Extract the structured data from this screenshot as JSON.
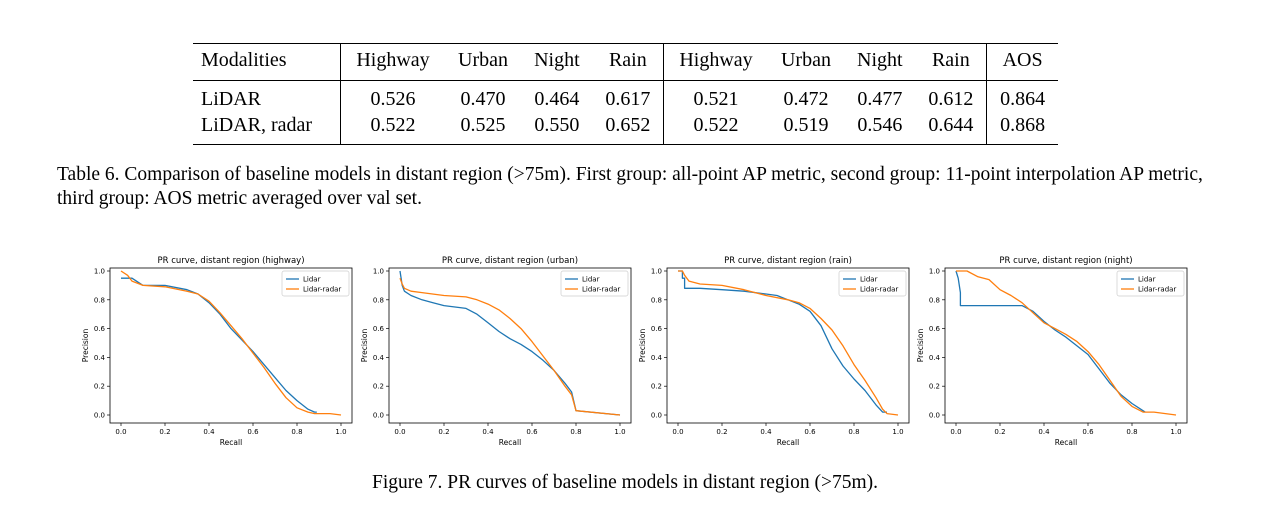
{
  "table": {
    "headers": [
      "Modalities",
      "Highway",
      "Urban",
      "Night",
      "Rain",
      "Highway",
      "Urban",
      "Night",
      "Rain",
      "AOS"
    ],
    "rows": [
      [
        "LiDAR",
        "0.526",
        "0.470",
        "0.464",
        "0.617",
        "0.521",
        "0.472",
        "0.477",
        "0.612",
        "0.864"
      ],
      [
        "LiDAR, radar",
        "0.522",
        "0.525",
        "0.550",
        "0.652",
        "0.522",
        "0.519",
        "0.546",
        "0.644",
        "0.868"
      ]
    ],
    "caption": "Table 6. Comparison of baseline models in distant region (>75m). First group: all-point AP metric, second group: 11-point interpolation AP metric, third group: AOS metric averaged over val set."
  },
  "figure_caption": "Figure 7. PR curves of baseline models in distant region (>75m).",
  "colors": {
    "lidar": "#1f77b4",
    "lidar_radar": "#ff7f0e"
  },
  "chart_data": [
    {
      "type": "line",
      "title": "PR curve, distant region (highway)",
      "xlabel": "Recall",
      "ylabel": "Precision",
      "xlim": [
        0,
        1.0
      ],
      "ylim": [
        0,
        1.0
      ],
      "xticks": [
        "0.0",
        "0.2",
        "0.4",
        "0.6",
        "0.8",
        "1.0"
      ],
      "yticks": [
        "0.0",
        "0.2",
        "0.4",
        "0.6",
        "0.8",
        "1.0"
      ],
      "legend": "top-right",
      "grid": false,
      "series": [
        {
          "name": "Lidar",
          "x": [
            0,
            0.05,
            0.1,
            0.2,
            0.3,
            0.35,
            0.4,
            0.45,
            0.5,
            0.55,
            0.6,
            0.65,
            0.7,
            0.75,
            0.8,
            0.85,
            0.88,
            0.89
          ],
          "y": [
            0.95,
            0.95,
            0.9,
            0.9,
            0.87,
            0.84,
            0.78,
            0.7,
            0.6,
            0.52,
            0.44,
            0.35,
            0.26,
            0.17,
            0.1,
            0.04,
            0.02,
            0.02
          ]
        },
        {
          "name": "Lidar-radar",
          "x": [
            0,
            0.03,
            0.05,
            0.1,
            0.2,
            0.3,
            0.35,
            0.4,
            0.45,
            0.5,
            0.55,
            0.6,
            0.65,
            0.7,
            0.75,
            0.8,
            0.85,
            0.88,
            0.95,
            1.0
          ],
          "y": [
            1.0,
            0.97,
            0.93,
            0.9,
            0.89,
            0.86,
            0.84,
            0.79,
            0.71,
            0.62,
            0.53,
            0.43,
            0.33,
            0.22,
            0.12,
            0.05,
            0.02,
            0.01,
            0.01,
            0.0
          ]
        }
      ]
    },
    {
      "type": "line",
      "title": "PR curve, distant region (urban)",
      "xlabel": "Recall",
      "ylabel": "Precision",
      "xlim": [
        0,
        1.0
      ],
      "ylim": [
        0,
        1.0
      ],
      "xticks": [
        "0.0",
        "0.2",
        "0.4",
        "0.6",
        "0.8",
        "1.0"
      ],
      "yticks": [
        "0.0",
        "0.2",
        "0.4",
        "0.6",
        "0.8",
        "1.0"
      ],
      "legend": "top-right",
      "grid": false,
      "series": [
        {
          "name": "Lidar",
          "x": [
            0,
            0.01,
            0.02,
            0.05,
            0.1,
            0.15,
            0.2,
            0.3,
            0.35,
            0.4,
            0.45,
            0.5,
            0.55,
            0.6,
            0.65,
            0.7,
            0.75,
            0.78,
            0.8,
            1.0
          ],
          "y": [
            1.0,
            0.9,
            0.86,
            0.83,
            0.8,
            0.78,
            0.76,
            0.74,
            0.7,
            0.64,
            0.58,
            0.53,
            0.49,
            0.44,
            0.38,
            0.31,
            0.22,
            0.16,
            0.03,
            0.0
          ]
        },
        {
          "name": "Lidar-radar",
          "x": [
            0,
            0.01,
            0.02,
            0.05,
            0.1,
            0.2,
            0.3,
            0.35,
            0.4,
            0.45,
            0.5,
            0.55,
            0.6,
            0.65,
            0.7,
            0.75,
            0.78,
            0.8,
            1.0
          ],
          "y": [
            0.95,
            0.91,
            0.88,
            0.86,
            0.85,
            0.83,
            0.82,
            0.8,
            0.77,
            0.73,
            0.67,
            0.6,
            0.51,
            0.41,
            0.31,
            0.2,
            0.14,
            0.03,
            0.0
          ]
        }
      ]
    },
    {
      "type": "line",
      "title": "PR curve, distant region (rain)",
      "xlabel": "Recall",
      "ylabel": "Precision",
      "xlim": [
        0,
        1.0
      ],
      "ylim": [
        0,
        1.0
      ],
      "xticks": [
        "0.0",
        "0.2",
        "0.4",
        "0.6",
        "0.8",
        "1.0"
      ],
      "yticks": [
        "0.0",
        "0.2",
        "0.4",
        "0.6",
        "0.8",
        "1.0"
      ],
      "legend": "top-right",
      "grid": false,
      "series": [
        {
          "name": "Lidar",
          "x": [
            0,
            0.02,
            0.02,
            0.03,
            0.03,
            0.1,
            0.2,
            0.3,
            0.4,
            0.45,
            0.5,
            0.55,
            0.6,
            0.65,
            0.7,
            0.75,
            0.8,
            0.85,
            0.9,
            0.93,
            0.95
          ],
          "y": [
            1.0,
            1.0,
            0.95,
            0.95,
            0.88,
            0.88,
            0.87,
            0.86,
            0.84,
            0.83,
            0.8,
            0.77,
            0.72,
            0.62,
            0.46,
            0.34,
            0.25,
            0.17,
            0.07,
            0.02,
            0.02
          ]
        },
        {
          "name": "Lidar-radar",
          "x": [
            0,
            0.02,
            0.03,
            0.05,
            0.1,
            0.2,
            0.3,
            0.4,
            0.5,
            0.55,
            0.6,
            0.65,
            0.7,
            0.75,
            0.8,
            0.85,
            0.9,
            0.93,
            0.95,
            1.0
          ],
          "y": [
            1.0,
            1.0,
            0.97,
            0.93,
            0.91,
            0.9,
            0.87,
            0.83,
            0.8,
            0.78,
            0.74,
            0.67,
            0.59,
            0.48,
            0.35,
            0.24,
            0.12,
            0.04,
            0.01,
            0.0
          ]
        }
      ]
    },
    {
      "type": "line",
      "title": "PR curve, distant region (night)",
      "xlabel": "Recall",
      "ylabel": "Precision",
      "xlim": [
        0,
        1.0
      ],
      "ylim": [
        0,
        1.0
      ],
      "xticks": [
        "0.0",
        "0.2",
        "0.4",
        "0.6",
        "0.8",
        "1.0"
      ],
      "yticks": [
        "0.0",
        "0.2",
        "0.4",
        "0.6",
        "0.8",
        "1.0"
      ],
      "legend": "top-right",
      "grid": false,
      "series": [
        {
          "name": "Lidar",
          "x": [
            0,
            0.01,
            0.02,
            0.02,
            0.03,
            0.05,
            0.1,
            0.2,
            0.3,
            0.35,
            0.4,
            0.45,
            0.5,
            0.55,
            0.6,
            0.65,
            0.7,
            0.75,
            0.8,
            0.85,
            0.86
          ],
          "y": [
            1.0,
            0.95,
            0.85,
            0.76,
            0.76,
            0.76,
            0.76,
            0.76,
            0.76,
            0.72,
            0.65,
            0.59,
            0.54,
            0.48,
            0.42,
            0.32,
            0.22,
            0.14,
            0.08,
            0.03,
            0.02
          ]
        },
        {
          "name": "Lidar-radar",
          "x": [
            0,
            0.05,
            0.1,
            0.15,
            0.2,
            0.25,
            0.3,
            0.35,
            0.4,
            0.45,
            0.5,
            0.55,
            0.6,
            0.65,
            0.7,
            0.75,
            0.8,
            0.85,
            0.9,
            1.0
          ],
          "y": [
            1.0,
            1.0,
            0.96,
            0.94,
            0.87,
            0.83,
            0.78,
            0.71,
            0.64,
            0.6,
            0.56,
            0.51,
            0.44,
            0.35,
            0.24,
            0.13,
            0.06,
            0.02,
            0.02,
            0.0
          ]
        }
      ]
    }
  ]
}
